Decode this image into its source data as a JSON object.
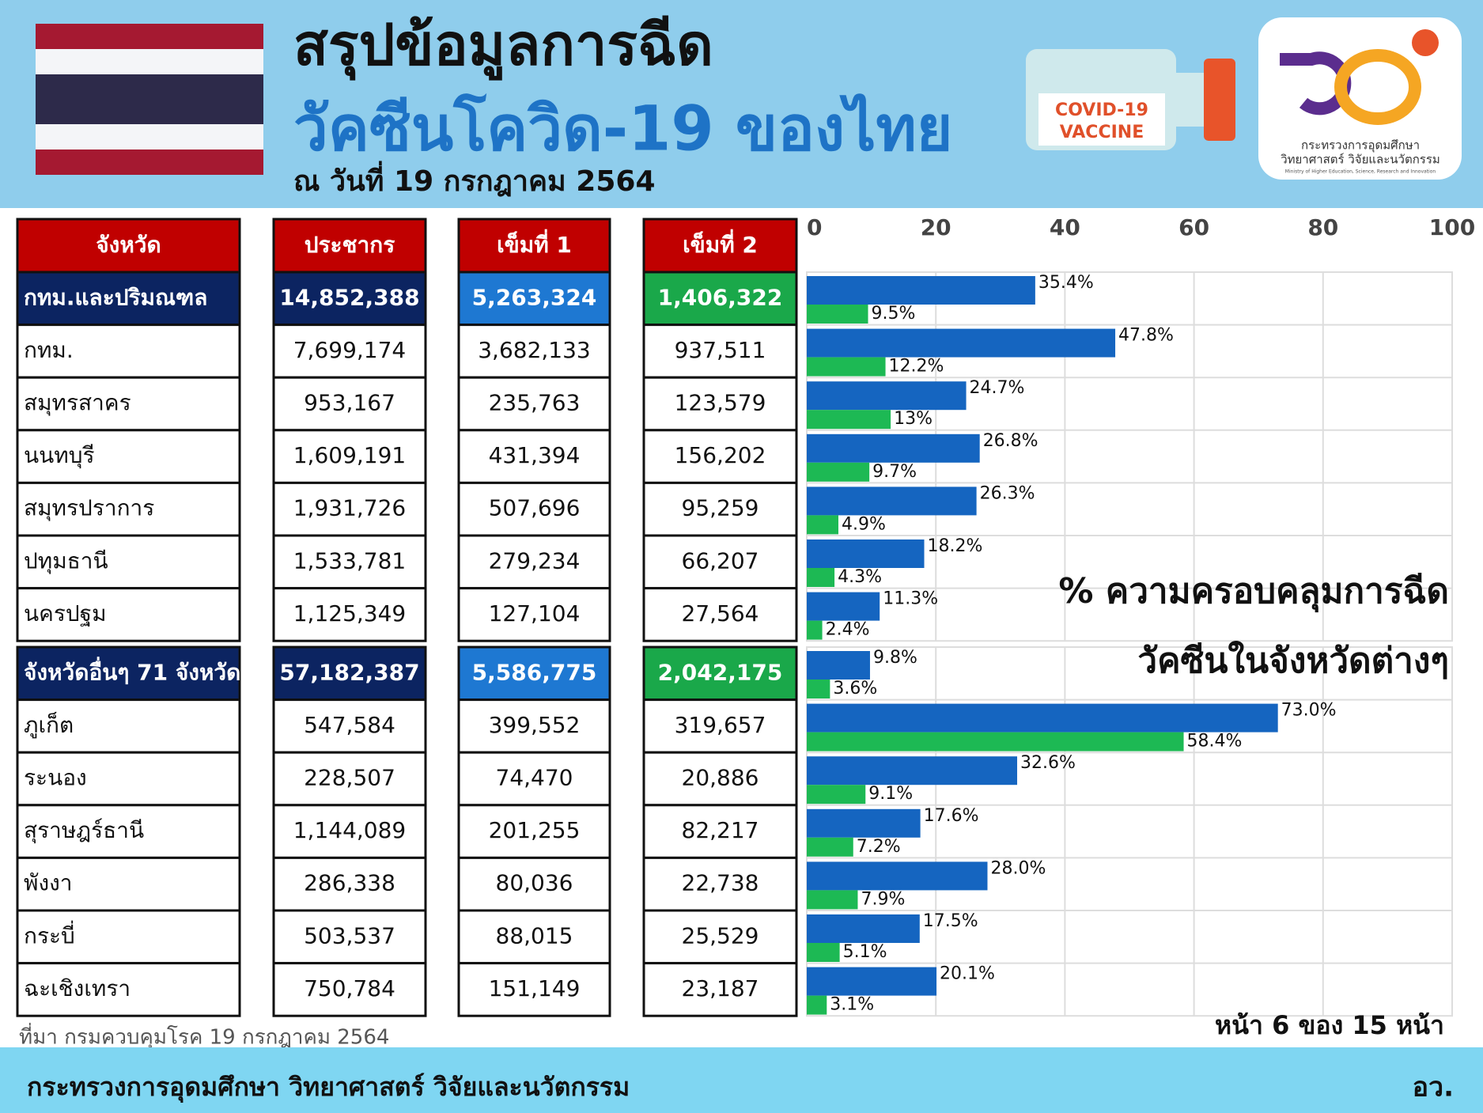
{
  "header": {
    "title_line1": "สรุปข้อมูลการฉีด",
    "title_line2": "วัคซีนโควิด-19 ของไทย",
    "date": "ณ วันที่ 19 กรกฎาคม 2564"
  },
  "badge": {
    "line1": "COVID-19",
    "line2": "VACCINE"
  },
  "logo": {
    "line1": "กระทรวงการอุดมศึกษา",
    "line2": "วิทยาศาสตร์ วิจัยและนวัตกรรม",
    "line3": "Ministry of Higher Education, Science, Research and Innovation"
  },
  "table": {
    "columns": [
      "จังหวัด",
      "ประชากร",
      "เข็มที่ 1",
      "เข็มที่ 2"
    ],
    "sections": [
      {
        "rows": [
          [
            "กทม.และปริมณฑล",
            "14,852,388",
            "5,263,324",
            "1,406,322"
          ],
          [
            "กทม.",
            "7,699,174",
            "3,682,133",
            "937,511"
          ],
          [
            "สมุทรสาคร",
            "953,167",
            "235,763",
            "123,579"
          ],
          [
            "นนทบุรี",
            "1,609,191",
            "431,394",
            "156,202"
          ],
          [
            "สมุทรปราการ",
            "1,931,726",
            "507,696",
            "95,259"
          ],
          [
            "ปทุมธานี",
            "1,533,781",
            "279,234",
            "66,207"
          ],
          [
            "นครปฐม",
            "1,125,349",
            "127,104",
            "27,564"
          ]
        ]
      },
      {
        "rows": [
          [
            "จังหวัดอื่นๆ 71 จังหวัด",
            "57,182,387",
            "5,586,775",
            "2,042,175"
          ],
          [
            "ภูเก็ต",
            "547,584",
            "399,552",
            "319,657"
          ],
          [
            "ระนอง",
            "228,507",
            "74,470",
            "20,886"
          ],
          [
            "สุราษฎร์ธานี",
            "1,144,089",
            "201,255",
            "82,217"
          ],
          [
            "พังงา",
            "286,338",
            "80,036",
            "22,738"
          ],
          [
            "กระบี่",
            "503,537",
            "88,015",
            "25,529"
          ],
          [
            "ฉะเชิงเทรา",
            "750,784",
            "151,149",
            "23,187"
          ]
        ]
      }
    ]
  },
  "chart_data": {
    "type": "hbar",
    "annotations": [
      "% ความครอบคลุมการฉีด",
      "วัคซีนในจังหวัดต่างๆ"
    ],
    "xlim": [
      0,
      100
    ],
    "xticks": [
      0,
      20,
      40,
      60,
      80,
      100
    ],
    "grid": true,
    "series": [
      {
        "color": "#1565c0",
        "values": [
          35.4,
          47.8,
          24.7,
          26.8,
          26.3,
          18.2,
          11.3,
          9.8,
          73.0,
          32.6,
          17.6,
          28.0,
          17.5,
          20.1
        ],
        "value_labels": [
          "35.4%",
          "47.8%",
          "24.7%",
          "26.8%",
          "26.3%",
          "18.2%",
          "11.3%",
          "9.8%",
          "73.0%",
          "32.6%",
          "17.6%",
          "28.0%",
          "17.5%",
          "20.1%"
        ]
      },
      {
        "color": "#1db954",
        "values": [
          9.5,
          12.2,
          13,
          9.7,
          4.9,
          4.3,
          2.4,
          3.6,
          58.4,
          9.1,
          7.2,
          7.9,
          5.1,
          3.1
        ],
        "value_labels": [
          "9.5%",
          "12.2%",
          "13%",
          "9.7%",
          "4.9%",
          "4.3%",
          "2.4%",
          "3.6%",
          "58.4%",
          "9.1%",
          "7.2%",
          "7.9%",
          "5.1%",
          "3.1%"
        ]
      }
    ]
  },
  "footer": {
    "source": "ที่มา กรมควบคุมโรค 19 กรกฎาคม 2564",
    "page": "หน้า 6 ของ 15 หน้า",
    "ministry": "กระทรวงการอุดมศึกษา วิทยาศาสตร์ วิจัยและนวัตกรรม",
    "abbr": "อว."
  }
}
